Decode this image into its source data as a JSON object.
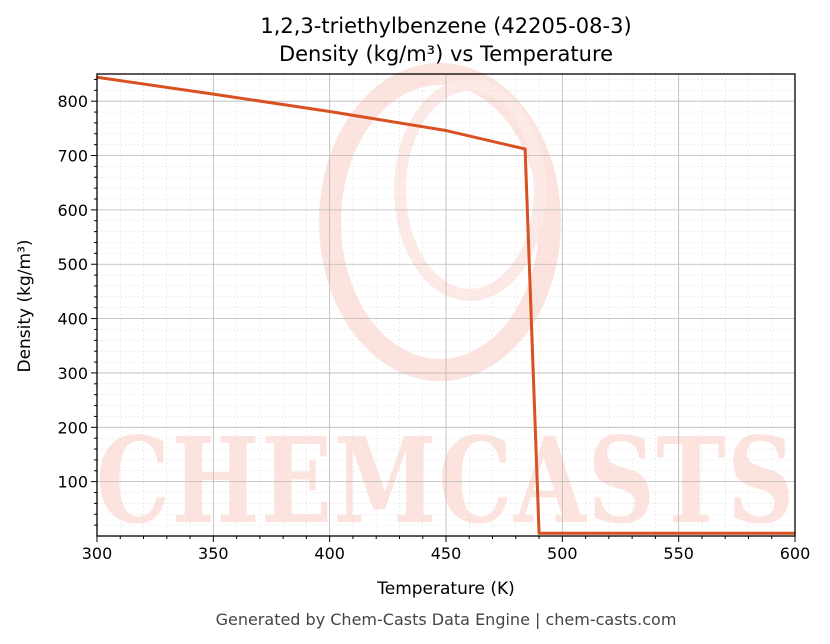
{
  "chart_data": {
    "type": "line",
    "title": "1,2,3-triethylbenzene (42205-08-3)",
    "subtitle": "Density (kg/m³) vs Temperature",
    "xlabel": "Temperature (K)",
    "ylabel": "Density (kg/m³)",
    "xlim": [
      300,
      600
    ],
    "ylim": [
      0,
      850
    ],
    "x_ticks": [
      300,
      350,
      400,
      450,
      500,
      550,
      600
    ],
    "y_ticks": [
      100,
      200,
      300,
      400,
      500,
      600,
      700,
      800
    ],
    "grid": true,
    "series": [
      {
        "color": "#d95122",
        "points": [
          [
            300,
            844
          ],
          [
            350,
            813
          ],
          [
            400,
            781
          ],
          [
            450,
            746
          ],
          [
            484,
            712
          ],
          [
            490,
            5
          ],
          [
            600,
            5
          ]
        ]
      }
    ]
  },
  "watermark": {
    "text": "CHEMCASTS",
    "color": "#fde3de"
  },
  "footer": "Generated by Chem-Casts Data Engine | chem-casts.com"
}
